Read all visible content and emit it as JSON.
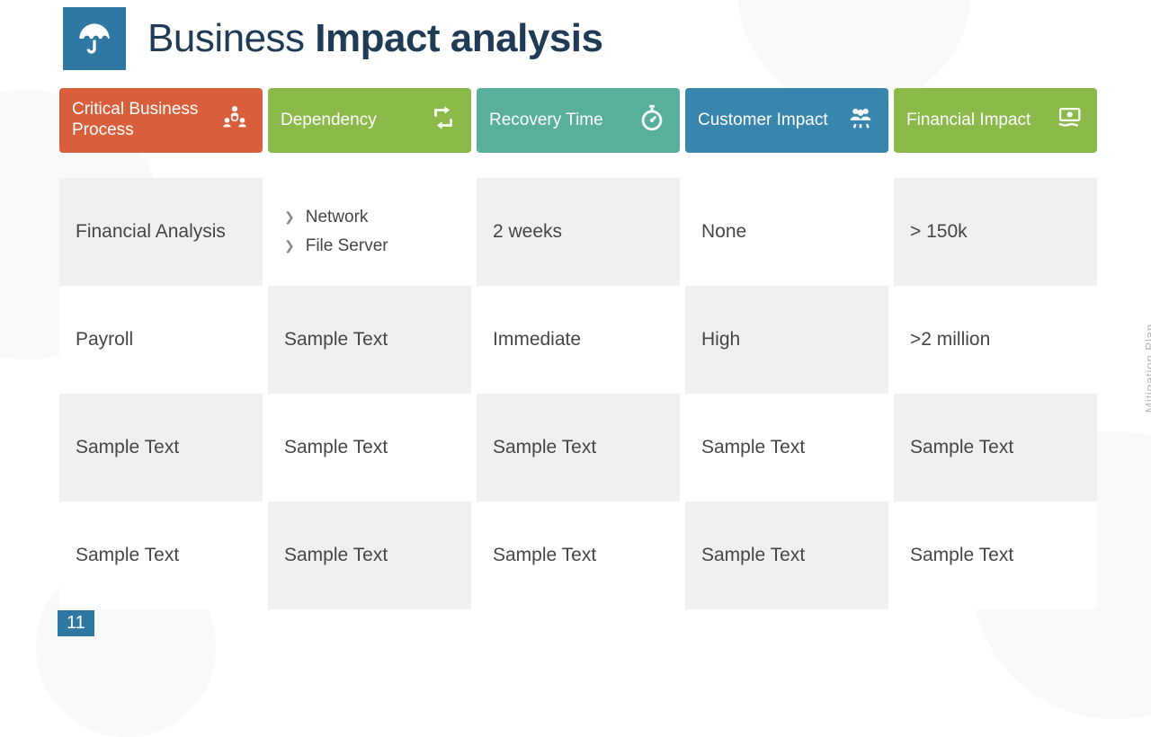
{
  "title": {
    "pre": "Business ",
    "bold": "Impact analysis"
  },
  "side_tab": "Mitigation Plan",
  "page_number": "11",
  "colors": {
    "header_icon_bg": "#2e78a3",
    "title_color": "#1f3b56",
    "row_alt_bg": "#f0f0f0",
    "text_color": "#464646"
  },
  "columns": [
    {
      "label": "Critical Business Process",
      "color": "#d95e3b",
      "icon": "people"
    },
    {
      "label": "Dependency",
      "color": "#8bb94a",
      "icon": "cycle"
    },
    {
      "label": "Recovery Time",
      "color": "#58b09c",
      "icon": "stopwatch"
    },
    {
      "label": "Customer Impact",
      "color": "#3886ad",
      "icon": "customers"
    },
    {
      "label": "Financial Impact",
      "color": "#8bb94a",
      "icon": "money"
    }
  ],
  "rows": [
    {
      "pattern": [
        "alt",
        "white",
        "alt",
        "white",
        "alt"
      ],
      "cells": [
        {
          "text": "Financial Analysis"
        },
        {
          "list": [
            "Network",
            "File Server"
          ]
        },
        {
          "text": "2 weeks"
        },
        {
          "text": "None"
        },
        {
          "text": "> 150k"
        }
      ]
    },
    {
      "pattern": [
        "white",
        "alt",
        "white",
        "alt",
        "white"
      ],
      "cells": [
        {
          "text": "Payroll"
        },
        {
          "text": "Sample Text"
        },
        {
          "text": "Immediate"
        },
        {
          "text": "High"
        },
        {
          "text": ">2 million"
        }
      ]
    },
    {
      "pattern": [
        "alt",
        "white",
        "alt",
        "white",
        "alt"
      ],
      "cells": [
        {
          "text": "Sample Text"
        },
        {
          "text": "Sample Text"
        },
        {
          "text": "Sample Text"
        },
        {
          "text": "Sample Text"
        },
        {
          "text": "Sample Text"
        }
      ]
    },
    {
      "pattern": [
        "white",
        "alt",
        "white",
        "alt",
        "white"
      ],
      "cells": [
        {
          "text": "Sample Text"
        },
        {
          "text": "Sample Text"
        },
        {
          "text": "Sample Text"
        },
        {
          "text": "Sample Text"
        },
        {
          "text": "Sample Text"
        }
      ]
    }
  ]
}
